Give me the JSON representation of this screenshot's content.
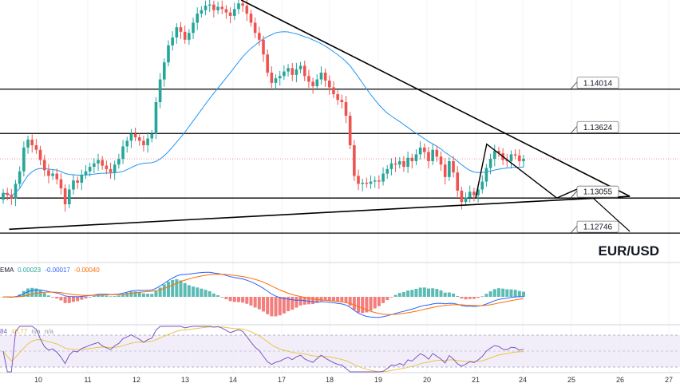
{
  "chart_data": {
    "type": "candlestick",
    "symbol": "EUR/USD",
    "x_ticks": [
      "10",
      "11",
      "12",
      "13",
      "14",
      "17",
      "18",
      "19",
      "20",
      "21",
      "24",
      "25",
      "26",
      "27"
    ],
    "levels": [
      {
        "label": "1.14014",
        "value": 1.14014
      },
      {
        "label": "1.13624",
        "value": 1.13624
      },
      {
        "label": "1.13055",
        "value": 1.13055
      },
      {
        "label": "1.12746",
        "value": 1.12746
      }
    ],
    "price_range": [
      1.1255,
      1.148
    ],
    "current_price": 1.134,
    "closes": [
      1.131,
      1.1308,
      1.1305,
      1.1318,
      1.1329,
      1.135,
      1.1357,
      1.1352,
      1.1348,
      1.1339,
      1.133,
      1.1325,
      1.1327,
      1.1322,
      1.1314,
      1.13,
      1.1313,
      1.1321,
      1.1319,
      1.1326,
      1.1329,
      1.1333,
      1.1336,
      1.1339,
      1.1334,
      1.1331,
      1.1328,
      1.1335,
      1.134,
      1.1351,
      1.1356,
      1.1362,
      1.1359,
      1.1356,
      1.1352,
      1.1358,
      1.1362,
      1.139,
      1.141,
      1.1425,
      1.144,
      1.1447,
      1.1456,
      1.1452,
      1.1445,
      1.1451,
      1.146,
      1.1468,
      1.1471,
      1.1475,
      1.1476,
      1.1471,
      1.1474,
      1.1472,
      1.1469,
      1.1466,
      1.1472,
      1.1477,
      1.1475,
      1.1468,
      1.146,
      1.1451,
      1.1445,
      1.1432,
      1.1416,
      1.1407,
      1.1411,
      1.1413,
      1.1417,
      1.142,
      1.1414,
      1.1419,
      1.1422,
      1.1413,
      1.1408,
      1.1404,
      1.141,
      1.1416,
      1.1409,
      1.1403,
      1.1397,
      1.1392,
      1.139,
      1.1378,
      1.1352,
      1.1325,
      1.1318,
      1.1319,
      1.1318,
      1.132,
      1.1321,
      1.132,
      1.1327,
      1.1331,
      1.1336,
      1.1335,
      1.1338,
      1.1333,
      1.1341,
      1.1338,
      1.1344,
      1.135,
      1.1346,
      1.1338,
      1.1348,
      1.1342,
      1.1335,
      1.1324,
      1.1338,
      1.1328,
      1.1312,
      1.1302,
      1.1306,
      1.1311,
      1.1308,
      1.1313,
      1.132,
      1.1332,
      1.134,
      1.1347,
      1.1345,
      1.1339,
      1.1338,
      1.1344,
      1.1343,
      1.1338,
      1.134
    ],
    "projection": [
      {
        "date": "21",
        "price": 1.13055
      },
      {
        "date": "21.7",
        "price": 1.1353
      },
      {
        "date": "24.7",
        "price": 1.13055
      },
      {
        "date": "25.2",
        "price": 1.1315
      },
      {
        "date": "25.6",
        "price": 1.1309
      }
    ],
    "projection2": [
      {
        "date": "25.2",
        "price": 1.1315
      },
      {
        "date": "26.2",
        "price": 1.1276
      }
    ],
    "trendlines": [
      {
        "name": "descending",
        "from": {
          "date": "14.5",
          "price": 1.148
        },
        "to": {
          "date": "26.2",
          "price": 1.1307
        }
      },
      {
        "name": "lower",
        "from": {
          "date": "9.4",
          "price": 1.1278
        },
        "to": {
          "date": "26.2",
          "price": 1.1307
        }
      }
    ],
    "macd": {
      "legend_label": "EMA",
      "legend_values": [
        "0.00023",
        "-0.00017",
        "-0.00040"
      ],
      "colors": {
        "macd": "#2962ff",
        "signal": "#ff6d00",
        "hist_pos": "#26a69a",
        "hist_neg": "#ef5350"
      }
    },
    "rsi": {
      "legend_values": [
        "84",
        "46.77",
        "n/a",
        "n/a"
      ],
      "colors": {
        "rsi": "#7e57c2",
        "ma": "#e8c547"
      }
    },
    "colors": {
      "up": "#26a69a",
      "down": "#ef5350",
      "ma": "#2196f3",
      "level": "#000000"
    }
  }
}
